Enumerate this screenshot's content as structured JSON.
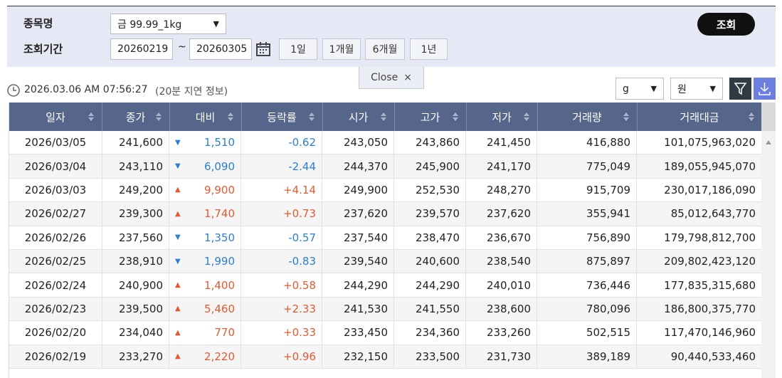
{
  "search": {
    "item_label": "종목명",
    "item_value": "금 99.99_1kg",
    "period_label": "조회기간",
    "date_from": "20260219",
    "date_sep": "~",
    "date_to": "20260305",
    "ranges": [
      "1일",
      "1개월",
      "6개월",
      "1년"
    ],
    "submit": "조회",
    "close": "Close",
    "close_icon": "×"
  },
  "status": {
    "timestamp": "2026.03.06 AM 07:56:27",
    "delay_note": "(20분 지연 정보)",
    "unit_weight": "g",
    "unit_currency": "원"
  },
  "table": {
    "headers": [
      "일자",
      "종가",
      "대비",
      "등락률",
      "시가",
      "고가",
      "저가",
      "거래량",
      "거래대금"
    ],
    "trend_colors": {
      "▼": "#2a7fcf",
      "▲": "#e35a30"
    },
    "rows": [
      {
        "arrow": "▼",
        "cells": [
          "2026/03/05",
          "241,600",
          "1,510",
          "-0.62",
          "243,050",
          "243,860",
          "241,450",
          "416,880",
          "101,075,963,020"
        ]
      },
      {
        "arrow": "▼",
        "cells": [
          "2026/03/04",
          "243,110",
          "6,090",
          "-2.44",
          "244,370",
          "245,900",
          "241,170",
          "775,049",
          "189,055,945,070"
        ]
      },
      {
        "arrow": "▲",
        "cells": [
          "2026/03/03",
          "249,200",
          "9,900",
          "+4.14",
          "249,900",
          "252,530",
          "248,270",
          "915,709",
          "230,017,186,090"
        ]
      },
      {
        "arrow": "▲",
        "cells": [
          "2026/02/27",
          "239,300",
          "1,740",
          "+0.73",
          "237,620",
          "239,570",
          "237,620",
          "355,941",
          "85,012,643,770"
        ]
      },
      {
        "arrow": "▼",
        "cells": [
          "2026/02/26",
          "237,560",
          "1,350",
          "-0.57",
          "237,540",
          "238,470",
          "236,670",
          "756,890",
          "179,798,812,700"
        ]
      },
      {
        "arrow": "▼",
        "cells": [
          "2026/02/25",
          "238,910",
          "1,990",
          "-0.83",
          "239,540",
          "240,600",
          "238,540",
          "875,897",
          "209,802,423,120"
        ]
      },
      {
        "arrow": "▲",
        "cells": [
          "2026/02/24",
          "240,900",
          "1,400",
          "+0.58",
          "244,290",
          "244,290",
          "240,010",
          "736,446",
          "177,835,315,680"
        ]
      },
      {
        "arrow": "▲",
        "cells": [
          "2026/02/23",
          "239,500",
          "5,460",
          "+2.33",
          "241,530",
          "241,550",
          "238,600",
          "780,096",
          "186,800,375,770"
        ]
      },
      {
        "arrow": "▲",
        "cells": [
          "2026/02/20",
          "234,040",
          "770",
          "+0.33",
          "233,450",
          "234,360",
          "233,260",
          "502,515",
          "117,470,146,960"
        ]
      },
      {
        "arrow": "▲",
        "cells": [
          "2026/02/19",
          "233,270",
          "2,220",
          "+0.96",
          "232,150",
          "233,500",
          "231,730",
          "389,189",
          "90,440,533,460"
        ]
      }
    ]
  }
}
